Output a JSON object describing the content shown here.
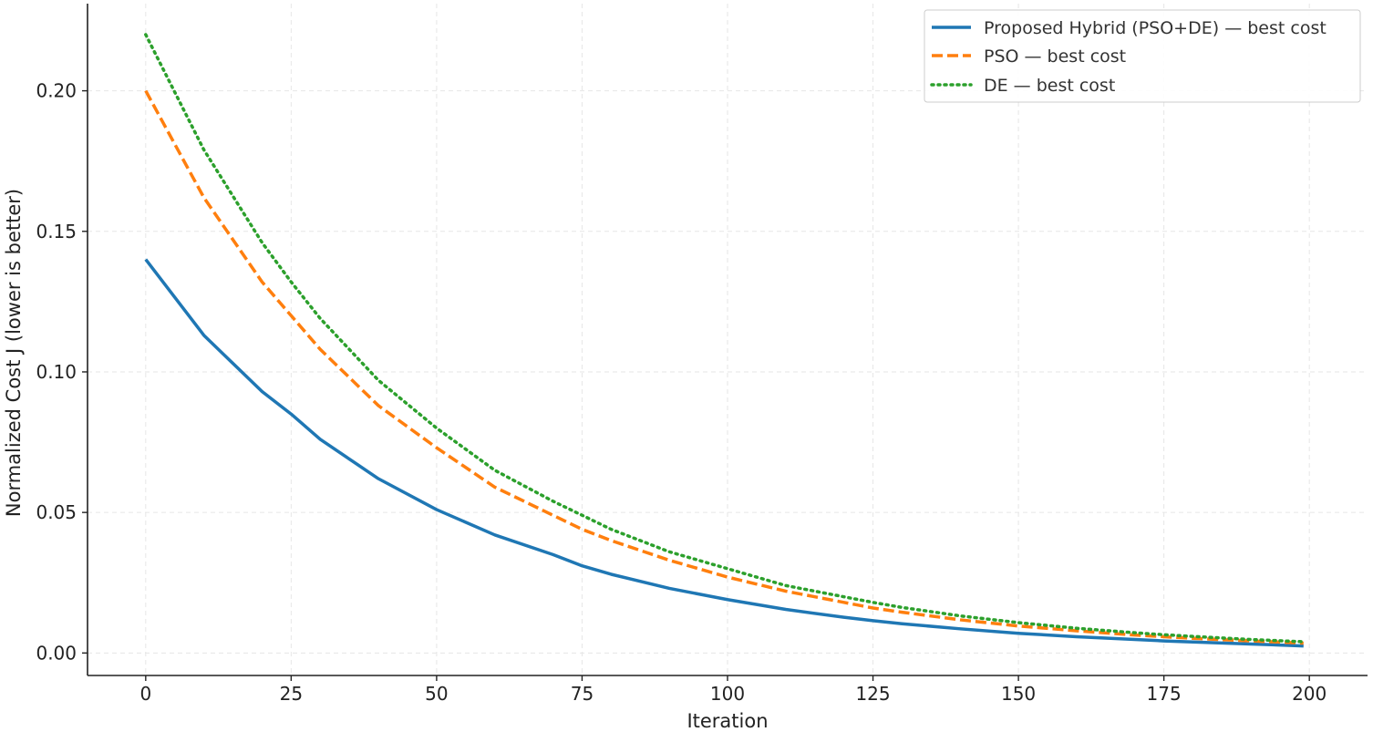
{
  "chart_data": {
    "type": "line",
    "title": "",
    "xlabel": "Iteration",
    "ylabel": "Normalized Cost J (lower is better)",
    "xlim": [
      -10,
      210
    ],
    "ylim": [
      -0.008,
      0.231
    ],
    "xticks": [
      0,
      25,
      50,
      75,
      100,
      125,
      150,
      175,
      200
    ],
    "xtick_labels": [
      "0",
      "25",
      "50",
      "75",
      "100",
      "125",
      "150",
      "175",
      "200"
    ],
    "yticks": [
      0.0,
      0.05,
      0.1,
      0.15,
      0.2
    ],
    "ytick_labels": [
      "0.00",
      "0.05",
      "0.10",
      "0.15",
      "0.20"
    ],
    "grid": true,
    "legend_position": "top-right",
    "x": [
      0,
      10,
      20,
      25,
      30,
      40,
      50,
      60,
      70,
      75,
      80,
      90,
      100,
      110,
      120,
      125,
      130,
      140,
      150,
      160,
      170,
      175,
      180,
      190,
      199
    ],
    "series": [
      {
        "name": "Proposed Hybrid (PSO+DE) — best cost",
        "color": "#1f77b4",
        "style": "solid",
        "values": [
          0.14,
          0.113,
          0.093,
          0.085,
          0.076,
          0.062,
          0.051,
          0.042,
          0.035,
          0.031,
          0.028,
          0.023,
          0.019,
          0.0155,
          0.0127,
          0.0115,
          0.0104,
          0.0086,
          0.007,
          0.0058,
          0.0048,
          0.0043,
          0.0039,
          0.0032,
          0.0025
        ]
      },
      {
        "name": "PSO — best cost",
        "color": "#ff7f0e",
        "style": "dashed",
        "values": [
          0.2,
          0.162,
          0.132,
          0.12,
          0.108,
          0.088,
          0.073,
          0.059,
          0.049,
          0.044,
          0.04,
          0.033,
          0.027,
          0.022,
          0.018,
          0.016,
          0.0145,
          0.0118,
          0.0096,
          0.0079,
          0.0064,
          0.0058,
          0.0052,
          0.0043,
          0.0035
        ]
      },
      {
        "name": "DE — best cost",
        "color": "#2ca02c",
        "style": "dotted",
        "values": [
          0.22,
          0.179,
          0.146,
          0.132,
          0.119,
          0.097,
          0.08,
          0.065,
          0.054,
          0.049,
          0.044,
          0.036,
          0.03,
          0.024,
          0.02,
          0.018,
          0.0162,
          0.0132,
          0.0108,
          0.0088,
          0.0072,
          0.0065,
          0.0059,
          0.0048,
          0.004
        ]
      }
    ]
  }
}
